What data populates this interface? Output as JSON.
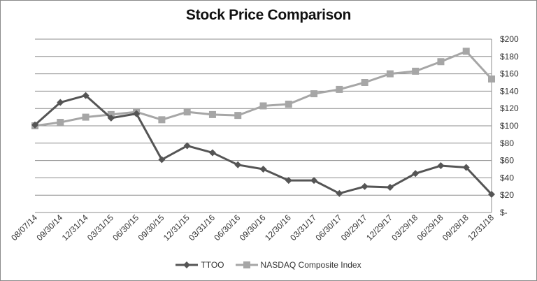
{
  "chart_data": {
    "type": "line",
    "title": "Stock Price Comparison",
    "xlabel": "",
    "ylabel": "",
    "categories": [
      "08/07/14",
      "09/30/14",
      "12/31/14",
      "03/31/15",
      "06/30/15",
      "09/30/15",
      "12/31/15",
      "03/31/16",
      "06/30/16",
      "09/30/16",
      "12/30/16",
      "03/31/17",
      "06/30/17",
      "09/29/17",
      "12/29/17",
      "03/29/18",
      "06/29/18",
      "09/28/18",
      "12/31/18"
    ],
    "series": [
      {
        "name": "TTOO",
        "color": "#555555",
        "marker": "diamond",
        "values": [
          101,
          127,
          135,
          109,
          114,
          61,
          77,
          69,
          55,
          50,
          37,
          37,
          22,
          30,
          29,
          45,
          54,
          52,
          21
        ]
      },
      {
        "name": "NASDAQ Composite Index",
        "color": "#a6a6a6",
        "marker": "square",
        "values": [
          100,
          104,
          110,
          113,
          116,
          107,
          116,
          113,
          112,
          123,
          125,
          137,
          142,
          150,
          160,
          163,
          174,
          186,
          154
        ]
      }
    ],
    "ylim": [
      0,
      200
    ],
    "yticks": [
      0,
      20,
      40,
      60,
      80,
      100,
      120,
      140,
      160,
      180,
      200
    ],
    "ytick_labels": [
      "$-",
      "$20",
      "$40",
      "$60",
      "$80",
      "$100",
      "$120",
      "$140",
      "$160",
      "$180",
      "$200"
    ],
    "y_axis_side": "right",
    "grid": true,
    "legend_position": "bottom"
  }
}
